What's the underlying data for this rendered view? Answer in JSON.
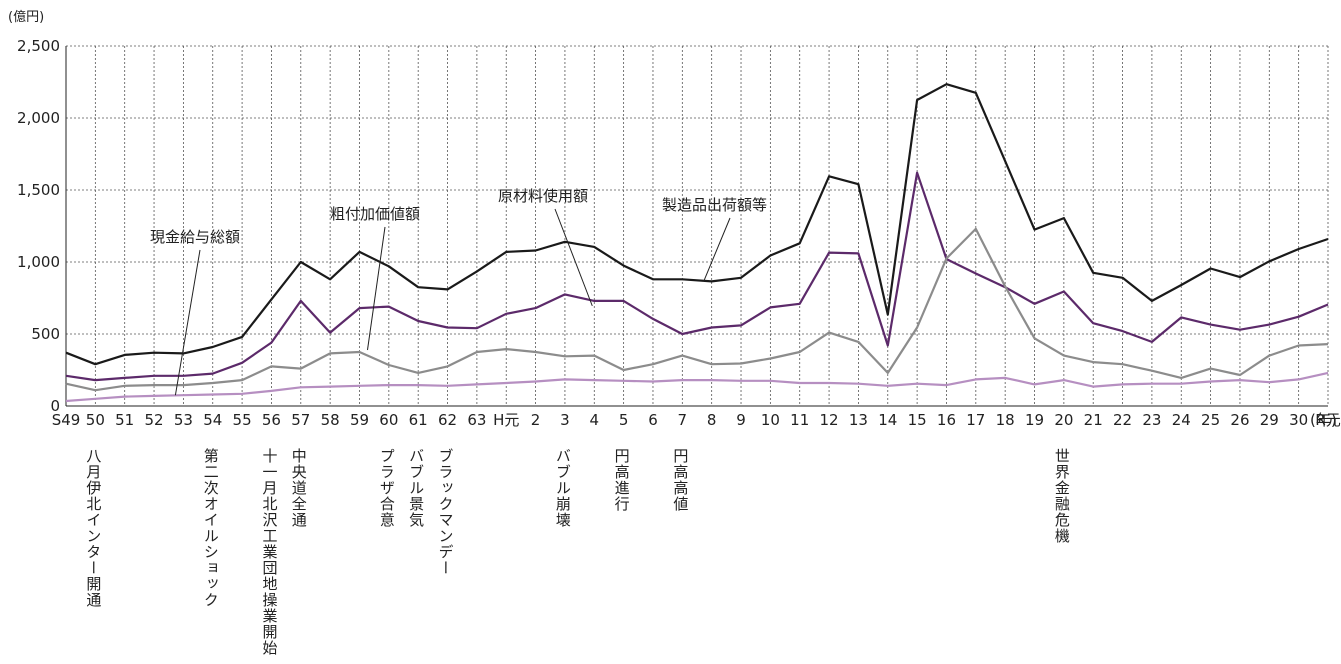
{
  "chart_data": {
    "type": "line",
    "ylabel": "(億円)",
    "xunit": "(年)",
    "ylim": [
      0,
      2500
    ],
    "yticks": [
      "0",
      "500",
      "1,000",
      "1,500",
      "2,000",
      "2,500"
    ],
    "ytick_values": [
      0,
      500,
      1000,
      1500,
      2000,
      2500
    ],
    "grid": true,
    "categories": [
      "S49",
      "50",
      "51",
      "52",
      "53",
      "54",
      "55",
      "56",
      "57",
      "58",
      "59",
      "60",
      "61",
      "62",
      "63",
      "H元",
      "2",
      "3",
      "4",
      "5",
      "6",
      "7",
      "8",
      "9",
      "10",
      "11",
      "12",
      "13",
      "14",
      "15",
      "16",
      "17",
      "18",
      "19",
      "20",
      "21",
      "22",
      "23",
      "24",
      "25",
      "26",
      "29",
      "30",
      "R元"
    ],
    "series": [
      {
        "name": "製造品出荷額等",
        "color": "#1a1a1a",
        "values": [
          370,
          290,
          355,
          370,
          365,
          410,
          480,
          740,
          1000,
          880,
          1070,
          970,
          825,
          810,
          935,
          1070,
          1080,
          1140,
          1105,
          975,
          880,
          880,
          865,
          890,
          1045,
          1130,
          1595,
          1540,
          635,
          2125,
          2235,
          2175,
          1700,
          1225,
          1305,
          925,
          890,
          730,
          840,
          955,
          895,
          1005,
          1090,
          1160
        ]
      },
      {
        "name": "原材料使用額",
        "color": "#5c2a6a",
        "values": [
          210,
          180,
          195,
          210,
          210,
          225,
          300,
          440,
          730,
          510,
          680,
          690,
          590,
          545,
          540,
          640,
          680,
          775,
          730,
          730,
          605,
          500,
          545,
          560,
          685,
          710,
          1065,
          1060,
          420,
          1620,
          1020,
          920,
          825,
          710,
          795,
          575,
          520,
          445,
          615,
          565,
          530,
          565,
          620,
          705
        ]
      },
      {
        "name": "粗付加価値額",
        "color": "#8c8c8c",
        "values": [
          155,
          110,
          140,
          145,
          145,
          160,
          180,
          275,
          260,
          365,
          375,
          285,
          230,
          275,
          375,
          395,
          375,
          345,
          350,
          250,
          290,
          350,
          290,
          295,
          330,
          375,
          510,
          445,
          230,
          545,
          1025,
          1230,
          830,
          470,
          350,
          305,
          290,
          245,
          195,
          260,
          215,
          350,
          420,
          430
        ]
      },
      {
        "name": "現金給与総額",
        "color": "#b68fc1",
        "values": [
          35,
          50,
          65,
          70,
          75,
          80,
          85,
          105,
          130,
          135,
          140,
          145,
          145,
          140,
          150,
          160,
          170,
          185,
          180,
          175,
          170,
          180,
          180,
          175,
          175,
          160,
          160,
          155,
          140,
          155,
          145,
          185,
          195,
          150,
          180,
          135,
          150,
          155,
          155,
          170,
          180,
          165,
          185,
          230
        ]
      }
    ],
    "annotations": [
      {
        "text": "現金給与総額",
        "series": 3
      },
      {
        "text": "粗付加価値額",
        "series": 2
      },
      {
        "text": "原材料使用額",
        "series": 1
      },
      {
        "text": "製造品出荷額等",
        "series": 0
      }
    ],
    "events": [
      {
        "category": "50",
        "text": "八月伊北インター開通"
      },
      {
        "category": "54",
        "text": "第二次オイルショック"
      },
      {
        "category": "56",
        "text": "十一月北沢工業団地操業開始"
      },
      {
        "category": "57",
        "text": "中央道全通"
      },
      {
        "category": "60",
        "text": "プラザ合意"
      },
      {
        "category": "61",
        "text": "バブル景気"
      },
      {
        "category": "62",
        "text": "ブラックマンデー"
      },
      {
        "category": "3",
        "text": "バブル崩壊"
      },
      {
        "category": "5",
        "text": "円高進行"
      },
      {
        "category": "7",
        "text": "円高高値"
      },
      {
        "category": "20",
        "text": "世界金融危機"
      }
    ]
  }
}
